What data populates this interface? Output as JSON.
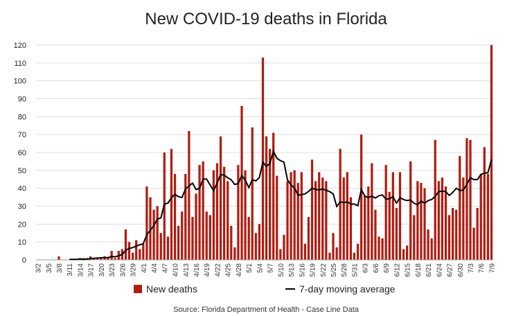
{
  "chart_data": {
    "type": "bar",
    "title": "New COVID-19 deaths in Florida",
    "source": "Source: Florida Department of Health - Case Line Data",
    "ylim": [
      0,
      120
    ],
    "yticks": [
      0,
      10,
      20,
      30,
      40,
      50,
      60,
      70,
      80,
      90,
      100,
      110,
      120
    ],
    "grid": true,
    "legend_position": "bottom",
    "colors": {
      "bars": "#b01c10",
      "line": "#000000",
      "grid": "#dddddd"
    },
    "x": [
      "3/2",
      "3/3",
      "3/4",
      "3/5",
      "3/6",
      "3/7",
      "3/8",
      "3/9",
      "3/10",
      "3/11",
      "3/12",
      "3/13",
      "3/14",
      "3/15",
      "3/16",
      "3/17",
      "3/18",
      "3/19",
      "3/20",
      "3/21",
      "3/22",
      "3/23",
      "3/24",
      "3/25",
      "3/26",
      "3/27",
      "3/28",
      "3/29",
      "3/30",
      "3/31",
      "4/1",
      "4/2",
      "4/3",
      "4/4",
      "4/5",
      "4/6",
      "4/7",
      "4/8",
      "4/9",
      "4/10",
      "4/11",
      "4/12",
      "4/13",
      "4/14",
      "4/15",
      "4/16",
      "4/17",
      "4/18",
      "4/19",
      "4/20",
      "4/21",
      "4/22",
      "4/23",
      "4/24",
      "4/25",
      "4/26",
      "4/27",
      "4/28",
      "4/29",
      "4/30",
      "5/1",
      "5/2",
      "5/3",
      "5/4",
      "5/5",
      "5/6",
      "5/7",
      "5/8",
      "5/9",
      "5/10",
      "5/11",
      "5/12",
      "5/13",
      "5/14",
      "5/15",
      "5/16",
      "5/17",
      "5/18",
      "5/19",
      "5/20",
      "5/21",
      "5/22",
      "5/23",
      "5/24",
      "5/25",
      "5/26",
      "5/27",
      "5/28",
      "5/29",
      "5/30",
      "5/31",
      "6/1",
      "6/2",
      "6/3",
      "6/4",
      "6/5",
      "6/6",
      "6/7",
      "6/8",
      "6/9",
      "6/10",
      "6/11",
      "6/12",
      "6/13",
      "6/14",
      "6/15",
      "6/16",
      "6/17",
      "6/18",
      "6/19",
      "6/20",
      "6/21",
      "6/22",
      "6/23",
      "6/24",
      "6/25",
      "6/26",
      "6/27",
      "6/28",
      "6/29",
      "6/30",
      "7/1",
      "7/2",
      "7/3",
      "7/4",
      "7/5",
      "7/6",
      "7/7",
      "7/8",
      "7/9"
    ],
    "series": [
      {
        "name": "New deaths",
        "type": "bar",
        "values": [
          0,
          0,
          0,
          0,
          0,
          0,
          2,
          0,
          0,
          0,
          0,
          0,
          1,
          1,
          1,
          2,
          1,
          1,
          1,
          2,
          1,
          5,
          1,
          5,
          6,
          17,
          10,
          4,
          11,
          6,
          9,
          41,
          35,
          28,
          30,
          15,
          60,
          13,
          62,
          48,
          19,
          27,
          48,
          72,
          24,
          37,
          53,
          55,
          27,
          25,
          50,
          54,
          69,
          52,
          44,
          19,
          7,
          53,
          86,
          50,
          24,
          74,
          15,
          20,
          113,
          69,
          62,
          71,
          47,
          6,
          14,
          44,
          49,
          50,
          43,
          49,
          9,
          24,
          56,
          44,
          49,
          46,
          44,
          4,
          15,
          7,
          62,
          46,
          49,
          35,
          4,
          9,
          70,
          36,
          41,
          54,
          28,
          13,
          12,
          53,
          38,
          49,
          29,
          49,
          6,
          8,
          55,
          25,
          44,
          43,
          40,
          17,
          12,
          67,
          44,
          46,
          41,
          25,
          29,
          28,
          58,
          46,
          68,
          67,
          18,
          29,
          48,
          63,
          48,
          120
        ]
      },
      {
        "name": "7-day moving average",
        "type": "line",
        "window": 7,
        "start": "3/11"
      }
    ]
  }
}
